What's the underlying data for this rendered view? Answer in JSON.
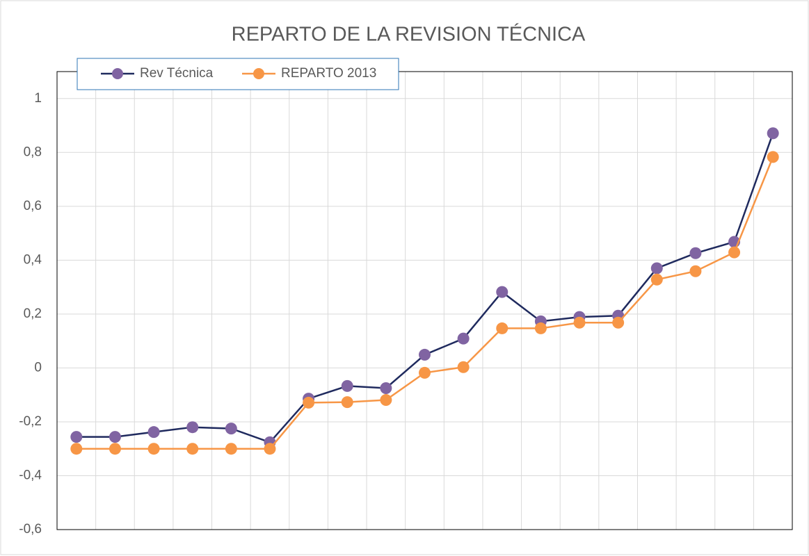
{
  "chart_data": {
    "type": "line",
    "title": "REPARTO DE LA REVISION TÉCNICA",
    "categories": [
      null,
      null,
      null,
      null,
      null,
      null,
      null,
      null,
      null,
      null,
      null,
      null,
      null,
      null,
      null,
      null,
      null,
      null,
      null
    ],
    "series": [
      {
        "name": "Rev Técnica",
        "color": "#8064a2",
        "line_color": "#1f2a5e",
        "values": [
          -0.256,
          -0.256,
          -0.238,
          -0.22,
          -0.225,
          -0.276,
          -0.114,
          -0.067,
          -0.075,
          0.049,
          0.109,
          0.282,
          0.173,
          0.189,
          0.194,
          0.37,
          0.426,
          0.468,
          0.871
        ]
      },
      {
        "name": "REPARTO 2013",
        "color": "#f79646",
        "line_color": "#f79646",
        "values": [
          -0.3,
          -0.3,
          -0.3,
          -0.3,
          -0.3,
          -0.3,
          -0.129,
          -0.127,
          -0.119,
          -0.018,
          0.003,
          0.147,
          0.147,
          0.168,
          0.168,
          0.328,
          0.359,
          0.429,
          0.783
        ]
      }
    ],
    "ylim": [
      -0.6,
      1.1
    ],
    "yticks": [
      {
        "value": -0.6,
        "label": "-0,6"
      },
      {
        "value": -0.4,
        "label": "-0,4"
      },
      {
        "value": -0.2,
        "label": "-0,2"
      },
      0,
      {
        "value": 0.2,
        "label": "0,2"
      },
      {
        "value": 0.4,
        "label": "0,4"
      },
      {
        "value": 0.6,
        "label": "0,6"
      },
      {
        "value": 0.8,
        "label": "0,8"
      },
      1
    ],
    "grid": true,
    "legend": "top-left"
  }
}
